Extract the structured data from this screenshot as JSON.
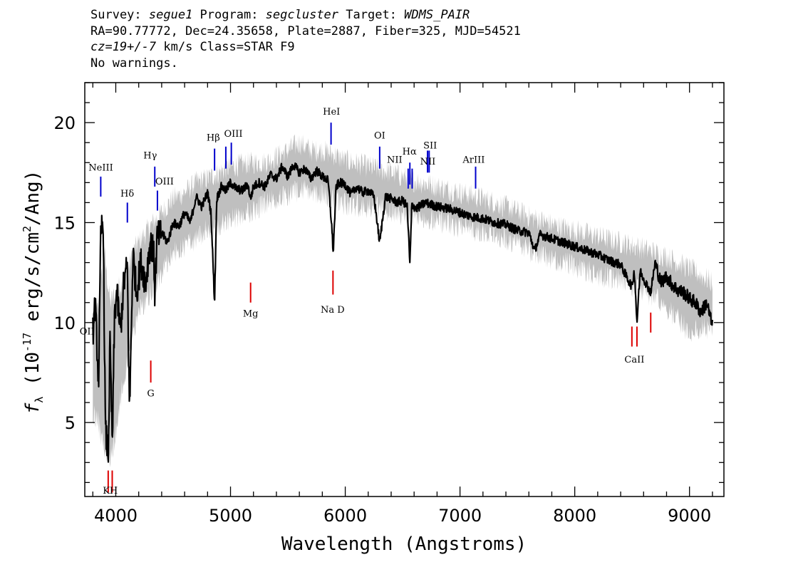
{
  "header": {
    "line1": {
      "survey_label": "Survey: ",
      "survey": "segue1",
      "program_label": " Program: ",
      "program": "segcluster",
      "target_label": " Target: ",
      "target": "WDMS_PAIR"
    },
    "line2": "RA=90.77772, Dec=24.35658, Plate=2887, Fiber=325, MJD=54521",
    "line3": {
      "cz": "cz=19+/-7",
      "rest": " km/s Class=STAR F9"
    },
    "line4": "No warnings."
  },
  "chart_data": {
    "type": "line",
    "title": "",
    "xlabel": "Wavelength (Angstroms)",
    "ylabel_prefix": "f",
    "ylabel_sub": "λ",
    "ylabel_main": " (10",
    "ylabel_exp": "-17",
    "ylabel_units": " erg/s/cm",
    "ylabel_sq": "2",
    "ylabel_end": "/Ang)",
    "xlim": [
      3730,
      9300
    ],
    "ylim": [
      1.3,
      22.0
    ],
    "xticks": [
      4000,
      5000,
      6000,
      7000,
      8000,
      9000
    ],
    "yticks": [
      5,
      10,
      15,
      20
    ],
    "grid": false,
    "series": [
      {
        "role": "error-envelope",
        "color": "#bfbfbf",
        "x": [
          3800,
          3850,
          3900,
          3950,
          4000,
          4050,
          4100,
          4150,
          4200,
          4300,
          4400,
          4500,
          4600,
          4700,
          4800,
          4900,
          5000,
          5100,
          5200,
          5300,
          5400,
          5500,
          5600,
          5700,
          5800,
          5900,
          6000,
          6200,
          6400,
          6600,
          6800,
          7000,
          7200,
          7400,
          7600,
          7800,
          8000,
          8200,
          8400,
          8600,
          8800,
          9000,
          9200
        ],
        "upper": [
          9.5,
          11.0,
          13.5,
          11.0,
          11.5,
          12.0,
          12.5,
          13.5,
          14.0,
          14.8,
          15.5,
          16.2,
          16.5,
          17.0,
          17.2,
          17.5,
          17.8,
          17.9,
          18.0,
          18.0,
          18.3,
          18.6,
          19.0,
          18.6,
          18.6,
          18.4,
          18.1,
          17.8,
          17.5,
          17.1,
          16.8,
          16.5,
          16.2,
          15.8,
          15.3,
          14.9,
          14.6,
          14.3,
          14.0,
          13.7,
          13.3,
          12.7,
          12.0
        ],
        "lower": [
          5.5,
          5.0,
          3.5,
          3.0,
          4.5,
          6.5,
          8.0,
          9.5,
          10.5,
          11.5,
          12.5,
          13.5,
          13.8,
          14.2,
          14.7,
          14.9,
          15.2,
          15.4,
          15.6,
          16.0,
          16.2,
          16.4,
          16.6,
          16.6,
          16.4,
          16.2,
          15.9,
          15.8,
          15.6,
          15.2,
          15.1,
          14.8,
          14.5,
          14.2,
          13.6,
          13.2,
          12.8,
          12.4,
          12.1,
          11.6,
          10.8,
          9.5,
          9.8
        ]
      },
      {
        "role": "flux",
        "color": "#000000",
        "x": [
          3800,
          3820,
          3850,
          3870,
          3890,
          3910,
          3935,
          3950,
          3970,
          3990,
          4010,
          4040,
          4070,
          4100,
          4120,
          4150,
          4180,
          4220,
          4260,
          4300,
          4330,
          4340,
          4360,
          4400,
          4450,
          4500,
          4550,
          4600,
          4650,
          4700,
          4750,
          4800,
          4830,
          4861,
          4880,
          4920,
          4960,
          5000,
          5050,
          5100,
          5150,
          5175,
          5200,
          5250,
          5300,
          5350,
          5400,
          5450,
          5500,
          5550,
          5600,
          5650,
          5700,
          5750,
          5800,
          5850,
          5880,
          5895,
          5920,
          5950,
          6000,
          6050,
          6100,
          6150,
          6200,
          6250,
          6300,
          6350,
          6400,
          6450,
          6500,
          6540,
          6563,
          6580,
          6620,
          6700,
          6800,
          6900,
          7000,
          7100,
          7200,
          7300,
          7400,
          7500,
          7600,
          7650,
          7700,
          7800,
          7900,
          8000,
          8100,
          8200,
          8300,
          8400,
          8450,
          8498,
          8520,
          8542,
          8570,
          8600,
          8662,
          8700,
          8750,
          8800,
          8850,
          8900,
          8950,
          9000,
          9050,
          9100,
          9150,
          9200
        ],
        "y": [
          9.5,
          11.0,
          7.0,
          14.5,
          15.2,
          4.5,
          3.5,
          9.0,
          3.8,
          10.5,
          11.5,
          9.5,
          12.0,
          12.8,
          5.5,
          13.5,
          11.5,
          13.0,
          12.0,
          14.0,
          13.5,
          11.5,
          14.2,
          14.5,
          14.0,
          15.0,
          14.8,
          15.5,
          15.0,
          16.3,
          15.8,
          16.5,
          15.5,
          11.0,
          16.2,
          16.8,
          16.6,
          17.0,
          16.7,
          16.6,
          16.9,
          16.2,
          16.8,
          17.0,
          16.8,
          17.4,
          17.2,
          17.8,
          17.3,
          17.9,
          17.5,
          17.7,
          17.2,
          17.6,
          17.3,
          17.1,
          15.0,
          13.5,
          16.8,
          17.0,
          16.9,
          16.4,
          16.8,
          16.5,
          16.6,
          16.3,
          14.0,
          16.3,
          16.2,
          16.0,
          16.1,
          15.8,
          12.9,
          15.9,
          15.7,
          16.0,
          15.8,
          15.7,
          15.5,
          15.3,
          15.2,
          15.0,
          14.9,
          14.6,
          14.5,
          13.6,
          14.4,
          14.2,
          14.0,
          13.8,
          13.6,
          13.4,
          13.1,
          12.9,
          12.3,
          11.8,
          12.6,
          10.0,
          12.6,
          12.2,
          11.5,
          13.0,
          12.0,
          12.3,
          11.9,
          11.6,
          11.5,
          11.2,
          11.0,
          10.5,
          11.0,
          9.8
        ]
      }
    ],
    "emission_lines": [
      {
        "label": "OII",
        "x": 3727,
        "y0": 8.2,
        "y1": 9.0
      },
      {
        "label": "NeIII",
        "x": 3869,
        "y0": 16.3,
        "y1": 17.3
      },
      {
        "label": "Hδ",
        "x": 4101,
        "y0": 15.0,
        "y1": 16.0
      },
      {
        "label": "Hγ",
        "x": 4340,
        "y0": 16.8,
        "y1": 17.8
      },
      {
        "label": "OIII",
        "x": 4363,
        "y0": 15.6,
        "y1": 16.6
      },
      {
        "label": "Hβ",
        "x": 4861,
        "y0": 17.6,
        "y1": 18.7
      },
      {
        "label": "OIII",
        "x": 4959,
        "y0": 17.7,
        "y1": 18.8
      },
      {
        "label": "OIII",
        "x": 5007,
        "y0": 17.9,
        "y1": 19.0
      },
      {
        "label": "HeI",
        "x": 5876,
        "y0": 18.9,
        "y1": 20.0
      },
      {
        "label": "OI",
        "x": 6300,
        "y0": 17.7,
        "y1": 18.8
      },
      {
        "label": "NII",
        "x": 6548,
        "y0": 16.7,
        "y1": 17.7
      },
      {
        "label": "Hα",
        "x": 6563,
        "y0": 16.9,
        "y1": 18.0
      },
      {
        "label": "NII",
        "x": 6583,
        "y0": 16.7,
        "y1": 17.7
      },
      {
        "label": "SII",
        "x": 6717,
        "y0": 17.5,
        "y1": 18.6
      },
      {
        "label": "SII",
        "x": 6731,
        "y0": 17.5,
        "y1": 18.6
      },
      {
        "label": "ArIII",
        "x": 7136,
        "y0": 16.7,
        "y1": 17.8
      }
    ],
    "absorption_lines": [
      {
        "label": "K",
        "x": 3934,
        "y0": 1.5,
        "y1": 2.6
      },
      {
        "label": "H",
        "x": 3969,
        "y0": 1.5,
        "y1": 2.6
      },
      {
        "label": "G",
        "x": 4305,
        "y0": 7.0,
        "y1": 8.1
      },
      {
        "label": "Mg",
        "x": 5175,
        "y0": 11.0,
        "y1": 12.0
      },
      {
        "label": "Na D",
        "x": 5893,
        "y0": 11.4,
        "y1": 12.6
      },
      {
        "label": "CaII",
        "x": 8498,
        "y0": 8.8,
        "y1": 9.8
      },
      {
        "label": "CaII",
        "x": 8542,
        "y0": 8.8,
        "y1": 9.8
      },
      {
        "label": "CaII",
        "x": 8662,
        "y0": 9.5,
        "y1": 10.5
      }
    ],
    "emission_line_labels": [
      {
        "text": "OII",
        "x": 3750,
        "y": 9.4,
        "align": "middle"
      },
      {
        "text": "NeIII",
        "x": 3870,
        "y": 17.6,
        "align": "middle"
      },
      {
        "text": "Hδ",
        "x": 4100,
        "y": 16.3,
        "align": "middle"
      },
      {
        "text": "Hγ",
        "x": 4300,
        "y": 18.2,
        "align": "middle"
      },
      {
        "text": "OIII",
        "x": 4425,
        "y": 16.9,
        "align": "middle"
      },
      {
        "text": "Hβ",
        "x": 4850,
        "y": 19.1,
        "align": "middle"
      },
      {
        "text": "OIII",
        "x": 5025,
        "y": 19.3,
        "align": "middle"
      },
      {
        "text": "HeI",
        "x": 5880,
        "y": 20.4,
        "align": "middle"
      },
      {
        "text": "OI",
        "x": 6300,
        "y": 19.2,
        "align": "middle"
      },
      {
        "text": "NII",
        "x": 6430,
        "y": 18.0,
        "align": "middle"
      },
      {
        "text": "Hα",
        "x": 6560,
        "y": 18.4,
        "align": "middle"
      },
      {
        "text": "NII",
        "x": 6720,
        "y": 17.9,
        "align": "middle"
      },
      {
        "text": "SII",
        "x": 6740,
        "y": 18.7,
        "align": "middle"
      },
      {
        "text": "ArIII",
        "x": 7120,
        "y": 18.0,
        "align": "middle"
      }
    ],
    "absorption_line_labels": [
      {
        "text": "KH",
        "x": 3952,
        "y": 1.45,
        "align": "middle"
      },
      {
        "text": "G",
        "x": 4305,
        "y": 6.3,
        "align": "middle"
      },
      {
        "text": "Mg",
        "x": 5175,
        "y": 10.3,
        "align": "middle"
      },
      {
        "text": "Na D",
        "x": 5890,
        "y": 10.5,
        "align": "middle"
      },
      {
        "text": "CaII",
        "x": 8520,
        "y": 8.0,
        "align": "middle"
      }
    ],
    "emission_color": "#0000cc",
    "absorption_color": "#dd0000"
  }
}
